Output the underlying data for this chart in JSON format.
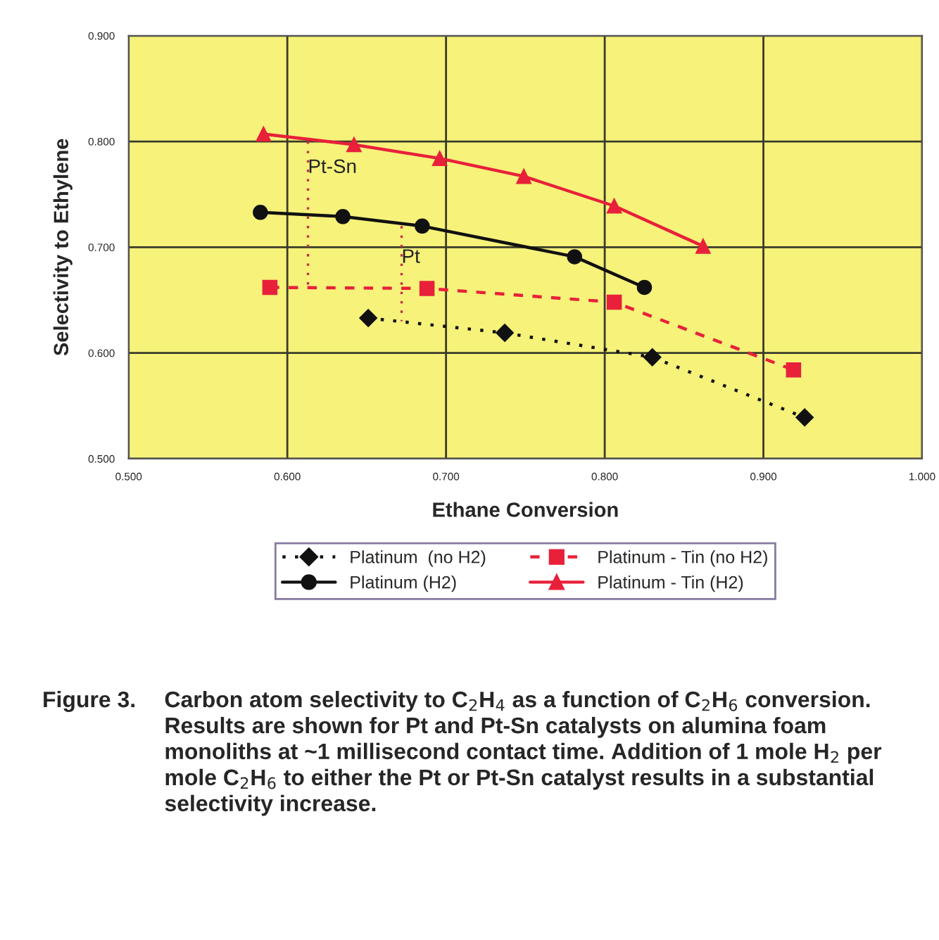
{
  "chart_data": {
    "type": "line",
    "xlabel": "Ethane Conversion",
    "ylabel": "Selectivity to Ethylene",
    "xlim": [
      0.5,
      1.0
    ],
    "ylim": [
      0.5,
      0.9
    ],
    "xticks": [
      {
        "value": 0.5,
        "label": "0.500"
      },
      {
        "value": 0.6,
        "label": "0.600"
      },
      {
        "value": 0.7,
        "label": "0.700"
      },
      {
        "value": 0.8,
        "label": "0.800"
      },
      {
        "value": 0.9,
        "label": "0.900"
      },
      {
        "value": 1.0,
        "label": "1.000"
      }
    ],
    "yticks": [
      {
        "value": 0.5,
        "label": "0.500"
      },
      {
        "value": 0.6,
        "label": "0.600"
      },
      {
        "value": 0.7,
        "label": "0.700"
      },
      {
        "value": 0.8,
        "label": "0.800"
      },
      {
        "value": 0.9,
        "label": "0.900"
      }
    ],
    "grid": true,
    "legend": "bottom",
    "series": [
      {
        "name": "Platinum  (no H2)",
        "color": "#111111",
        "marker": "diamond",
        "line_style": "dotted",
        "x": [
          0.651,
          0.737,
          0.83,
          0.926
        ],
        "values": [
          0.633,
          0.619,
          0.596,
          0.539
        ]
      },
      {
        "name": "Platinum - Tin (no H2)",
        "color": "#e8203a",
        "marker": "square",
        "line_style": "dashed",
        "x": [
          0.589,
          0.688,
          0.806,
          0.919
        ],
        "values": [
          0.662,
          0.661,
          0.648,
          0.584
        ]
      },
      {
        "name": "Platinum (H2)",
        "color": "#111111",
        "marker": "circle",
        "line_style": "solid",
        "x": [
          0.583,
          0.635,
          0.685,
          0.781,
          0.825
        ],
        "values": [
          0.733,
          0.729,
          0.72,
          0.691,
          0.662
        ]
      },
      {
        "name": "Platinum - Tin (H2)",
        "color": "#e8203a",
        "marker": "triangle",
        "line_style": "solid",
        "x": [
          0.585,
          0.642,
          0.696,
          0.749,
          0.806,
          0.862
        ],
        "values": [
          0.807,
          0.797,
          0.784,
          0.767,
          0.739,
          0.701
        ]
      }
    ],
    "annotations": [
      {
        "text": "Pt-Sn",
        "x": 0.613,
        "y": 0.662
      },
      {
        "text": "Pt",
        "x": 0.672,
        "y": 0.63
      },
      "Figure 3.",
      "Carbon atom selectivity to C$_{2}$H$_{4}$ as a function of C$_{2}$H$_{6}$ conversion. Results are shown for Pt and Pt-Sn catalysts on alumina foam monoliths at ~1 millisecond contact time. Addition of 1 mole H$_{2}$ per mole C$_{2}$H$_{6}$ to either the Pt or Pt-Sn catalyst results in a substantial selectivity increase."
    ]
  }
}
